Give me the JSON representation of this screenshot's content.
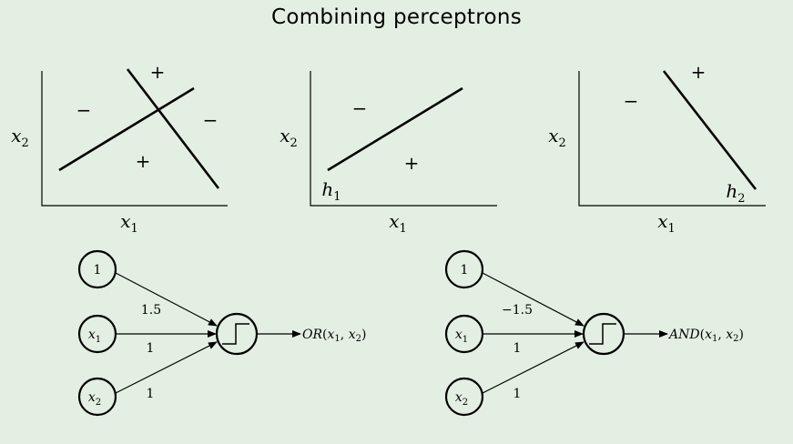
{
  "title": "Combining perceptrons",
  "plots": {
    "plot1": {
      "xlabel": "x",
      "xlabel_sub": "1",
      "ylabel": "x",
      "ylabel_sub": "2",
      "signs": [
        "+",
        "−",
        "−",
        "+"
      ]
    },
    "plot2": {
      "xlabel": "x",
      "xlabel_sub": "1",
      "ylabel": "x",
      "ylabel_sub": "2",
      "signs": [
        "−",
        "+"
      ],
      "line_label": "h",
      "line_label_sub": "1"
    },
    "plot3": {
      "xlabel": "x",
      "xlabel_sub": "1",
      "ylabel": "x",
      "ylabel_sub": "2",
      "signs": [
        "+",
        "−"
      ],
      "line_label": "h",
      "line_label_sub": "2"
    }
  },
  "networks": {
    "or": {
      "inputs": [
        {
          "label": "1",
          "sub": ""
        },
        {
          "label": "x",
          "sub": "1"
        },
        {
          "label": "x",
          "sub": "2"
        }
      ],
      "weights": [
        "1.5",
        "1",
        "1"
      ],
      "output_fn": "OR",
      "output_args": [
        "x",
        "1",
        "x",
        "2"
      ]
    },
    "and": {
      "inputs": [
        {
          "label": "1",
          "sub": ""
        },
        {
          "label": "x",
          "sub": "1"
        },
        {
          "label": "x",
          "sub": "2"
        }
      ],
      "weights": [
        "−1.5",
        "1",
        "1"
      ],
      "output_fn": "AND",
      "output_args": [
        "x",
        "1",
        "x",
        "2"
      ]
    }
  }
}
